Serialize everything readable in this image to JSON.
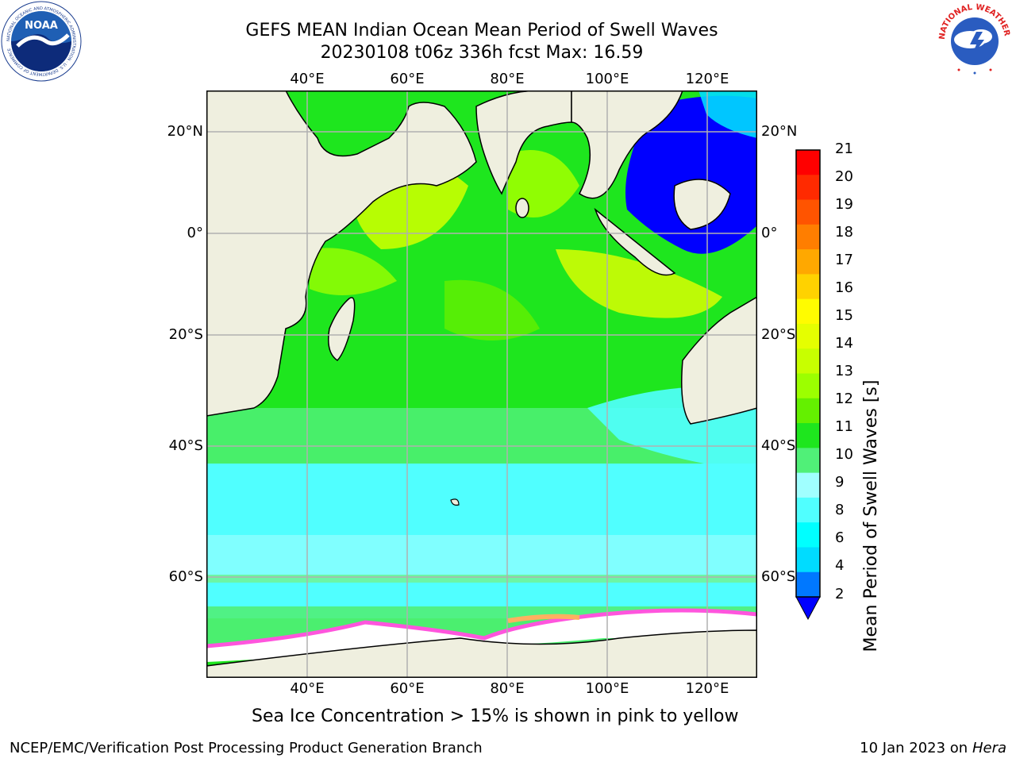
{
  "header": {
    "title_line1": "GEFS MEAN Indian Ocean Mean Period of Swell Waves",
    "title_line2": "20230108 t06z 336h fcst   Max: 16.59"
  },
  "logos": {
    "left": {
      "icon": "noaa-logo",
      "text": "NOAA",
      "ring_text": "NATIONAL OCEANIC AND ATMOSPHERIC ADMINISTRATION · U.S. DEPARTMENT OF COMMERCE"
    },
    "right": {
      "icon": "nws-logo",
      "ring_text": "NATIONAL WEATHER SERVICE"
    }
  },
  "map": {
    "lon_labels": [
      "40°E",
      "60°E",
      "80°E",
      "100°E",
      "120°E"
    ],
    "lat_labels_left": [
      "20°N",
      "0°",
      "20°S",
      "40°S",
      "60°S"
    ],
    "lat_labels_right": [
      "20°N",
      "0°",
      "20°S",
      "40°S",
      "60°S"
    ],
    "colors": {
      "land": "#efefdf",
      "grid": "#b0b0b0",
      "ice": "#ffffff"
    }
  },
  "colorbar": {
    "label": "Mean Period of Swell Waves [s]",
    "ticks": [
      "21",
      "20",
      "19",
      "18",
      "17",
      "16",
      "15",
      "14",
      "13",
      "12",
      "11",
      "10",
      "9",
      "8",
      "6",
      "4",
      "2"
    ],
    "colors_top_to_bottom": [
      "#ff0000",
      "#ff2a00",
      "#ff5400",
      "#ff7e00",
      "#ffa800",
      "#ffd200",
      "#fffc00",
      "#e5ff00",
      "#c8ff00",
      "#9cff00",
      "#64f000",
      "#1ee61e",
      "#50f078",
      "#a0ffff",
      "#50ffff",
      "#00ffff",
      "#00dcff",
      "#0078ff"
    ],
    "extend_color": "#0000ff"
  },
  "note": "Sea Ice Concentration > 15% is shown in pink to yellow",
  "footer": {
    "left": "NCEP/EMC/Verification Post Processing Product Generation Branch",
    "right_prefix": "10 Jan 2023 on ",
    "right_host": "Hera"
  }
}
